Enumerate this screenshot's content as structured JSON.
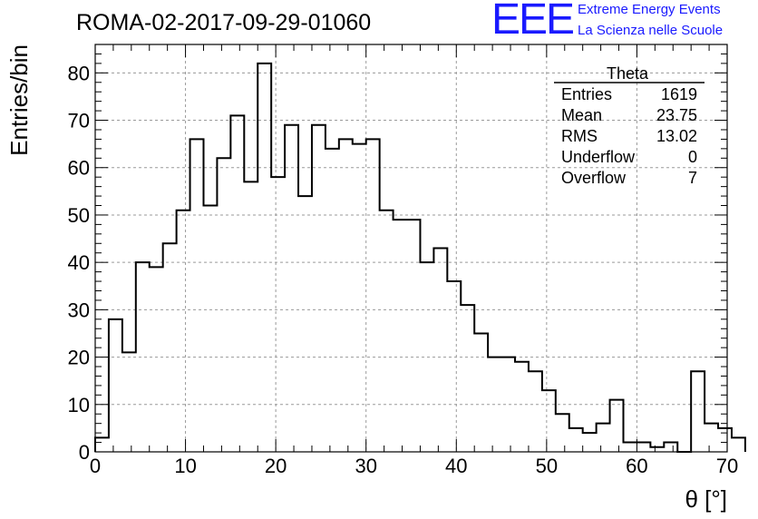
{
  "run_title": "ROMA-02-2017-09-29-01060",
  "logo": {
    "mark": "EEE",
    "line1": "Extreme Energy Events",
    "line2": "La Scienza nelle Scuole",
    "color": "#1a1aff"
  },
  "stats": {
    "title": "Theta",
    "rows": [
      {
        "label": "Entries",
        "value": "1619"
      },
      {
        "label": "Mean",
        "value": "23.75"
      },
      {
        "label": "RMS",
        "value": "13.02"
      },
      {
        "label": "Underflow",
        "value": "0"
      },
      {
        "label": "Overflow",
        "value": "7"
      }
    ]
  },
  "chart_data": {
    "type": "histogram",
    "title": "ROMA-02-2017-09-29-01060",
    "xlabel": "θ [°]",
    "ylabel": "Entries/bin",
    "xlim": [
      0,
      70
    ],
    "ylim": [
      0,
      86
    ],
    "x_ticks": [
      0,
      10,
      20,
      30,
      40,
      50,
      60,
      70
    ],
    "y_ticks": [
      0,
      10,
      20,
      30,
      40,
      50,
      60,
      70,
      80
    ],
    "grid": true,
    "bin_width": 1.5,
    "bin_edges_start": 0,
    "values": [
      3,
      28,
      21,
      40,
      39,
      44,
      51,
      66,
      52,
      62,
      71,
      57,
      82,
      58,
      69,
      54,
      69,
      64,
      66,
      65,
      66,
      51,
      49,
      49,
      40,
      43,
      36,
      31,
      25,
      20,
      20,
      19,
      17,
      13,
      8,
      5,
      4,
      6,
      11,
      2,
      2,
      1,
      2,
      0,
      17,
      6,
      5,
      3
    ]
  }
}
